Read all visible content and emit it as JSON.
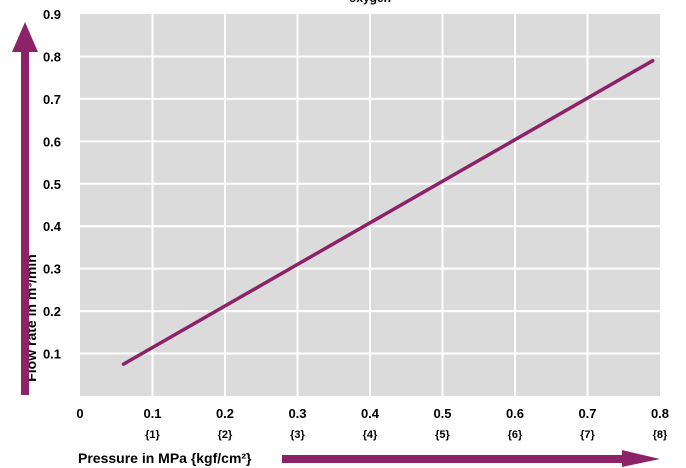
{
  "chart_data": {
    "type": "line",
    "title": "oxygen",
    "xlabel": "Pressure in MPa {kgf/cm²}",
    "ylabel": "Flow rate in m³/min",
    "xlim": [
      0,
      0.8
    ],
    "ylim": [
      0,
      0.9
    ],
    "x_ticks": [
      {
        "value": 0,
        "label": "0",
        "sub": ""
      },
      {
        "value": 0.1,
        "label": "0.1",
        "sub": "{1}"
      },
      {
        "value": 0.2,
        "label": "0.2",
        "sub": "{2}"
      },
      {
        "value": 0.3,
        "label": "0.3",
        "sub": "{3}"
      },
      {
        "value": 0.4,
        "label": "0.4",
        "sub": "{4}"
      },
      {
        "value": 0.5,
        "label": "0.5",
        "sub": "{5}"
      },
      {
        "value": 0.6,
        "label": "0.6",
        "sub": "{6}"
      },
      {
        "value": 0.7,
        "label": "0.7",
        "sub": "{7}"
      },
      {
        "value": 0.8,
        "label": "0.8",
        "sub": "{8}"
      }
    ],
    "y_ticks": [
      "0.1",
      "0.2",
      "0.3",
      "0.4",
      "0.5",
      "0.6",
      "0.7",
      "0.8",
      "0.9"
    ],
    "grid": true,
    "series": [
      {
        "x": [
          0.06,
          0.79
        ],
        "y": [
          0.075,
          0.79
        ]
      }
    ]
  },
  "colors": {
    "plot_bg": "#dcdbdb",
    "grid": "#ffffff",
    "line": "#8c2369",
    "arrow": "#8c2369"
  }
}
